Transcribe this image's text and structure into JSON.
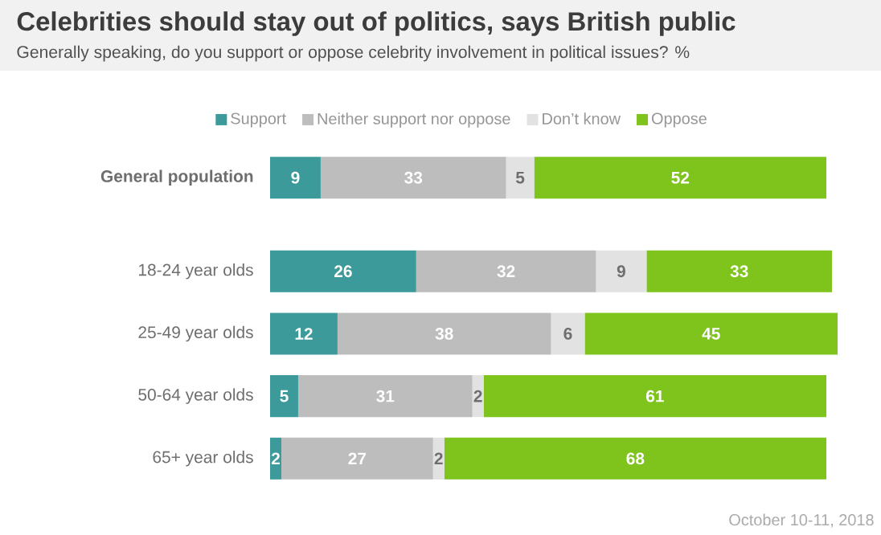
{
  "chart_data": {
    "type": "bar",
    "orientation": "horizontal",
    "stacked": true,
    "data_labels": true,
    "legend": "top",
    "tick_labels": "y",
    "title": "Celebrities should stay out of politics, says British public",
    "subtitle": "Generally speaking, do you support or oppose celebrity involvement in political issues? %",
    "categories": [
      "General population",
      "18-24 year olds",
      "25-49 year olds",
      "50-64 year olds",
      "65+ year olds"
    ],
    "series": [
      {
        "name": "Support",
        "color": "#3d9a9b",
        "values": [
          9,
          26,
          12,
          5,
          2
        ]
      },
      {
        "name": "Neither support nor oppose",
        "color": "#bdbdbd",
        "values": [
          33,
          32,
          38,
          31,
          27
        ]
      },
      {
        "name": "Don’t know",
        "color": "#e2e2e2",
        "values": [
          5,
          9,
          6,
          2,
          2
        ]
      },
      {
        "name": "Oppose",
        "color": "#7ec41c",
        "values": [
          52,
          33,
          45,
          61,
          68
        ]
      }
    ],
    "annotations": [
      "October 10-11, 2018"
    ]
  }
}
